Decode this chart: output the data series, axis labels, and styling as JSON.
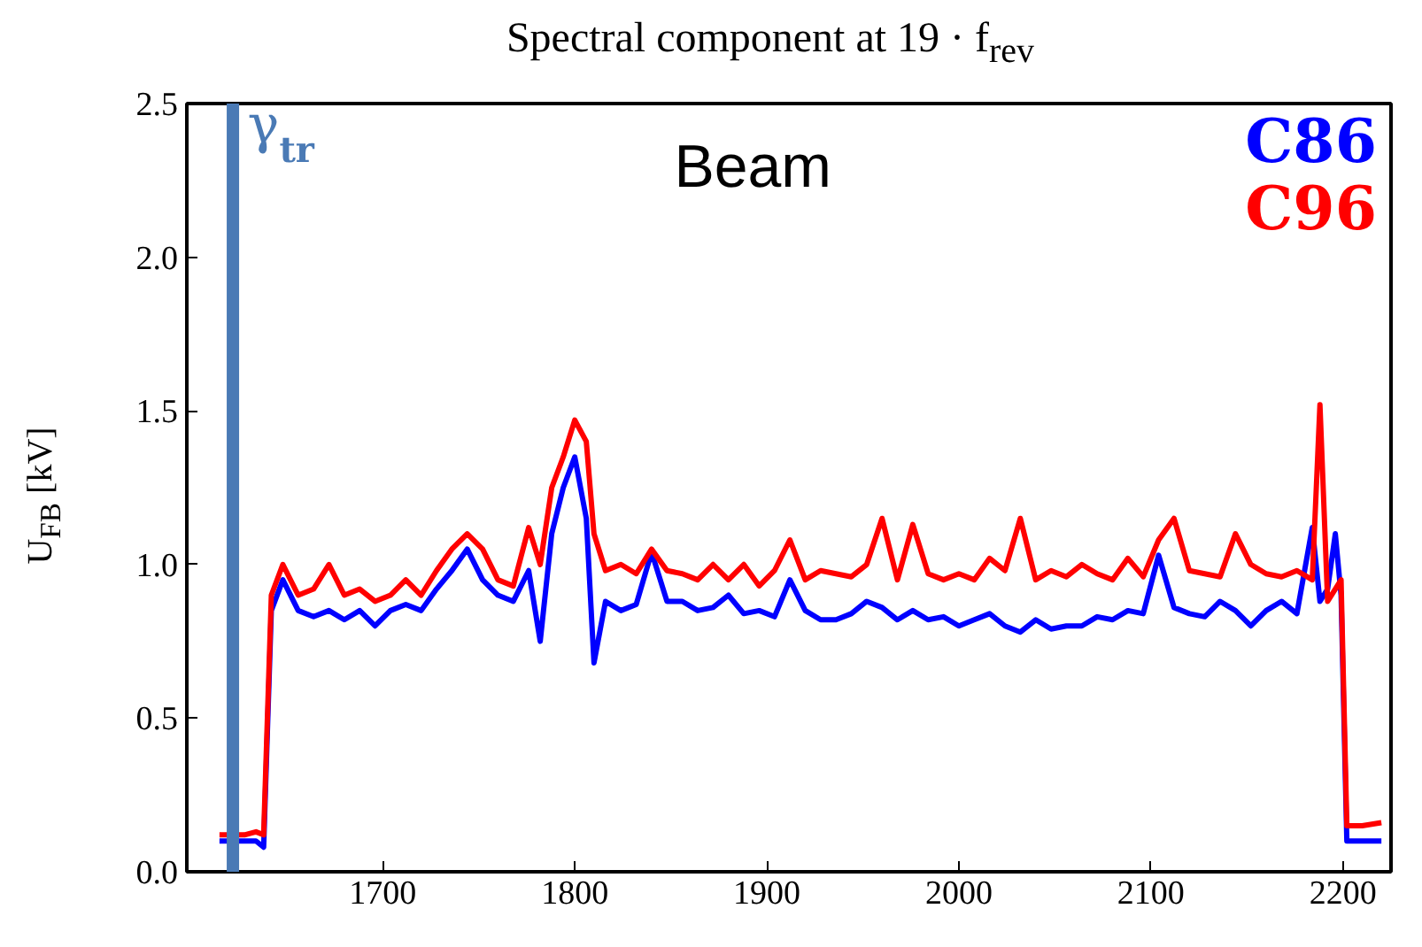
{
  "chart_data": {
    "type": "line",
    "title": "Spectral component at 19 · f$_{rev}$",
    "ylabel": "U$_{FB}$ [kV]",
    "annotations": [
      "Beam"
    ],
    "x": [
      1615,
      1628,
      1634,
      1638,
      1642,
      1648,
      1656,
      1664,
      1672,
      1680,
      1688,
      1696,
      1704,
      1712,
      1720,
      1728,
      1736,
      1744,
      1752,
      1760,
      1768,
      1776,
      1782,
      1788,
      1794,
      1800,
      1806,
      1810,
      1816,
      1824,
      1832,
      1840,
      1848,
      1856,
      1864,
      1872,
      1880,
      1888,
      1896,
      1904,
      1912,
      1920,
      1928,
      1936,
      1944,
      1952,
      1960,
      1968,
      1976,
      1984,
      1992,
      2000,
      2008,
      2016,
      2024,
      2032,
      2040,
      2048,
      2056,
      2064,
      2072,
      2080,
      2088,
      2096,
      2104,
      2112,
      2120,
      2128,
      2136,
      2144,
      2152,
      2160,
      2168,
      2176,
      2184,
      2188,
      2192,
      2196,
      2199,
      2202,
      2210,
      2220
    ],
    "series": [
      {
        "name": "C86",
        "color": "#0000ff",
        "values": [
          0.1,
          0.1,
          0.1,
          0.08,
          0.85,
          0.95,
          0.85,
          0.83,
          0.85,
          0.82,
          0.85,
          0.8,
          0.85,
          0.87,
          0.85,
          0.92,
          0.98,
          1.05,
          0.95,
          0.9,
          0.88,
          0.98,
          0.75,
          1.1,
          1.25,
          1.35,
          1.15,
          0.68,
          0.88,
          0.85,
          0.87,
          1.04,
          0.88,
          0.88,
          0.85,
          0.86,
          0.9,
          0.84,
          0.85,
          0.83,
          0.95,
          0.85,
          0.82,
          0.82,
          0.84,
          0.88,
          0.86,
          0.82,
          0.85,
          0.82,
          0.83,
          0.8,
          0.82,
          0.84,
          0.8,
          0.78,
          0.82,
          0.79,
          0.8,
          0.8,
          0.83,
          0.82,
          0.85,
          0.84,
          1.03,
          0.86,
          0.84,
          0.83,
          0.88,
          0.85,
          0.8,
          0.85,
          0.88,
          0.84,
          1.12,
          0.88,
          0.92,
          1.1,
          0.9,
          0.1,
          0.1,
          0.1
        ]
      },
      {
        "name": "C96",
        "color": "#ff0000",
        "values": [
          0.12,
          0.12,
          0.13,
          0.12,
          0.9,
          1.0,
          0.9,
          0.92,
          1.0,
          0.9,
          0.92,
          0.88,
          0.9,
          0.95,
          0.9,
          0.98,
          1.05,
          1.1,
          1.05,
          0.95,
          0.93,
          1.12,
          1.0,
          1.25,
          1.35,
          1.47,
          1.4,
          1.1,
          0.98,
          1.0,
          0.97,
          1.05,
          0.98,
          0.97,
          0.95,
          1.0,
          0.95,
          1.0,
          0.93,
          0.98,
          1.08,
          0.95,
          0.98,
          0.97,
          0.96,
          1.0,
          1.15,
          0.95,
          1.13,
          0.97,
          0.95,
          0.97,
          0.95,
          1.02,
          0.98,
          1.15,
          0.95,
          0.98,
          0.96,
          1.0,
          0.97,
          0.95,
          1.02,
          0.96,
          1.08,
          1.15,
          0.98,
          0.97,
          0.96,
          1.1,
          1.0,
          0.97,
          0.96,
          0.98,
          0.95,
          1.52,
          0.88,
          0.92,
          0.95,
          0.15,
          0.15,
          0.16
        ]
      }
    ],
    "ref_lines": [
      {
        "axis": "x",
        "value": 1622,
        "label": "γ$_{tr}$",
        "color": "#4a7ab5"
      }
    ],
    "xlim": [
      1598,
      2225
    ],
    "ylim": [
      0,
      2.5
    ],
    "xticks": [
      1700,
      1800,
      1900,
      2000,
      2100,
      2200
    ],
    "yticks": [
      {
        "value": 0,
        "label": "0.0"
      },
      0.5,
      {
        "value": 1,
        "label": "1.0"
      },
      1.5,
      {
        "value": 2,
        "label": "2.0"
      },
      2.5
    ],
    "grid": false,
    "legend": "top right",
    "marker": "none",
    "line_style": "solid"
  }
}
